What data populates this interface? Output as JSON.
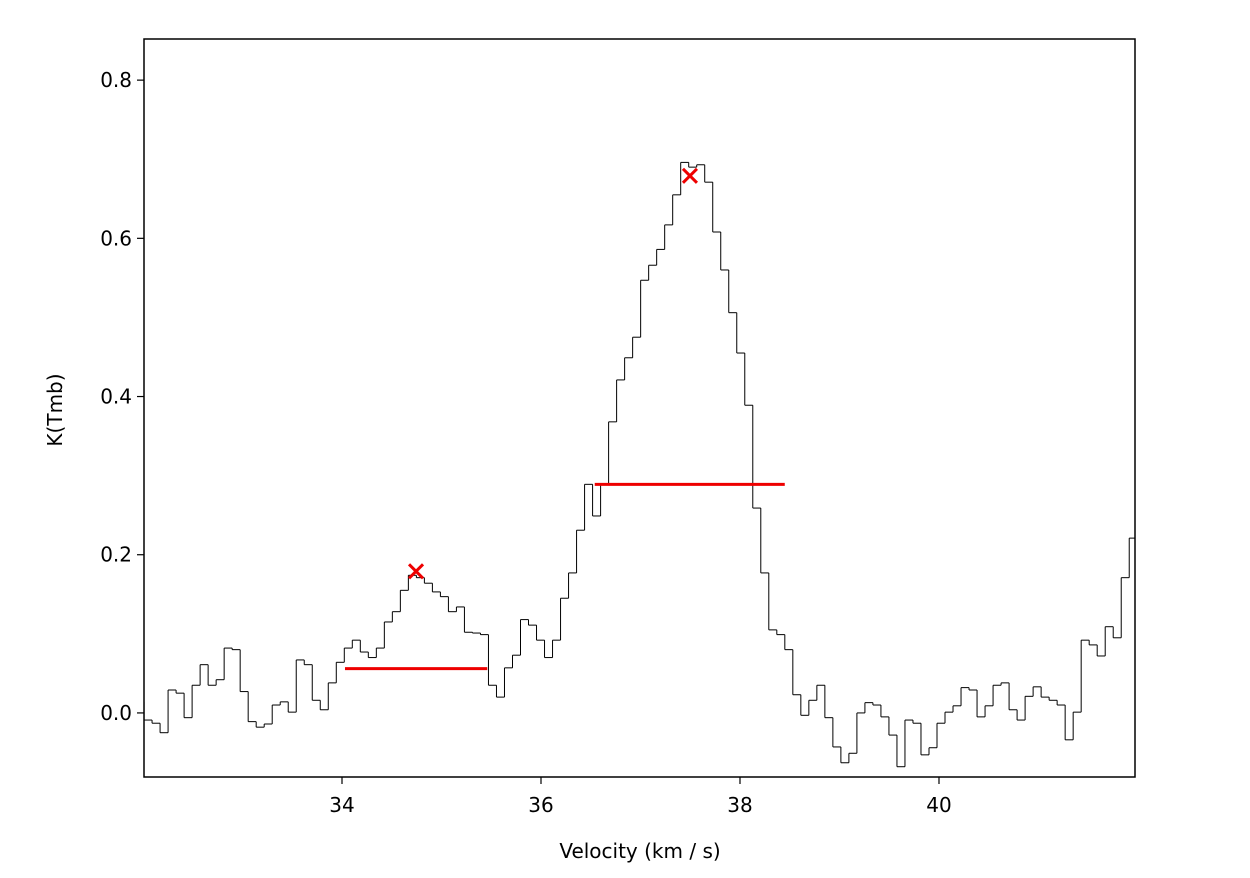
{
  "chart_data": {
    "type": "step",
    "xlabel": "Velocity (km / s)",
    "ylabel": "K(Tmb)",
    "xlim": [
      32.01,
      41.97
    ],
    "ylim": [
      -0.081,
      0.852
    ],
    "xticks": [
      34,
      36,
      38,
      40
    ],
    "yticks": [
      {
        "value": 0,
        "label": "0.0"
      },
      0.2,
      0.4,
      0.6,
      0.8
    ],
    "grid": false,
    "color": "#000000",
    "marker_color": "#ee0000",
    "x": [
      31.97,
      32.051,
      32.131,
      32.212,
      32.292,
      32.373,
      32.453,
      32.534,
      32.614,
      32.695,
      32.775,
      32.856,
      32.936,
      33.017,
      33.097,
      33.178,
      33.258,
      33.339,
      33.419,
      33.5,
      33.58,
      33.661,
      33.741,
      33.822,
      33.902,
      33.983,
      34.063,
      34.144,
      34.224,
      34.305,
      34.385,
      34.466,
      34.546,
      34.627,
      34.707,
      34.788,
      34.868,
      34.949,
      35.029,
      35.11,
      35.19,
      35.271,
      35.351,
      35.432,
      35.512,
      35.593,
      35.673,
      35.754,
      35.834,
      35.915,
      35.995,
      36.076,
      36.156,
      36.237,
      36.317,
      36.398,
      36.478,
      36.559,
      36.639,
      36.72,
      36.8,
      36.881,
      36.961,
      37.042,
      37.122,
      37.203,
      37.283,
      37.364,
      37.444,
      37.525,
      37.605,
      37.686,
      37.766,
      37.847,
      37.927,
      38.008,
      38.088,
      38.169,
      38.249,
      38.33,
      38.41,
      38.491,
      38.571,
      38.652,
      38.732,
      38.813,
      38.893,
      38.974,
      39.054,
      39.135,
      39.215,
      39.296,
      39.376,
      39.457,
      39.537,
      39.618,
      39.698,
      39.779,
      39.859,
      39.94,
      40.02,
      40.101,
      40.181,
      40.262,
      40.342,
      40.423,
      40.503,
      40.584,
      40.664,
      40.745,
      40.825,
      40.906,
      40.986,
      41.067,
      41.147,
      41.228,
      41.308,
      41.389,
      41.469,
      41.55,
      41.63,
      41.711,
      41.791,
      41.872,
      41.952
    ],
    "values": [
      0.014,
      -0.009,
      -0.013,
      -0.025,
      0.029,
      0.025,
      -0.006,
      0.035,
      0.061,
      0.035,
      0.042,
      0.082,
      0.08,
      0.027,
      -0.011,
      -0.018,
      -0.014,
      0.01,
      0.014,
      0.001,
      0.067,
      0.061,
      0.016,
      0.004,
      0.038,
      0.064,
      0.082,
      0.092,
      0.077,
      0.07,
      0.082,
      0.115,
      0.128,
      0.155,
      0.174,
      0.171,
      0.164,
      0.153,
      0.147,
      0.128,
      0.134,
      0.102,
      0.101,
      0.099,
      0.035,
      0.02,
      0.057,
      0.073,
      0.118,
      0.111,
      0.092,
      0.07,
      0.092,
      0.145,
      0.177,
      0.231,
      0.289,
      0.249,
      0.289,
      0.368,
      0.421,
      0.449,
      0.475,
      0.547,
      0.566,
      0.586,
      0.617,
      0.655,
      0.696,
      0.69,
      0.693,
      0.671,
      0.608,
      0.56,
      0.506,
      0.455,
      0.389,
      0.259,
      0.177,
      0.105,
      0.099,
      0.08,
      0.023,
      -0.003,
      0.016,
      0.035,
      -0.006,
      -0.043,
      -0.063,
      -0.051,
      0,
      0.013,
      0.01,
      -0.005,
      -0.028,
      -0.068,
      -0.009,
      -0.013,
      -0.053,
      -0.044,
      -0.013,
      0.001,
      0.009,
      0.032,
      0.029,
      -0.005,
      0.009,
      0.035,
      0.038,
      0.004,
      -0.009,
      0.021,
      0.033,
      0.02,
      0.016,
      0.01,
      -0.034,
      0.001,
      0.092,
      0.086,
      0.072,
      0.109,
      0.095,
      0.171,
      0.221
    ],
    "peaks": [
      {
        "x": 34.744,
        "y": 0.179
      },
      {
        "x": 37.497,
        "y": 0.679
      }
    ],
    "widths": [
      {
        "x": [
          34.03,
          35.46
        ],
        "y": 0.056
      },
      {
        "x": [
          36.54,
          38.45
        ],
        "y": 0.289
      }
    ]
  }
}
